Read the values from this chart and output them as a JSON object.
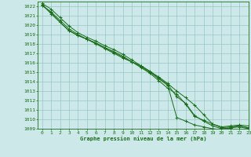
{
  "title": "Graphe pression niveau de la mer (hPa)",
  "bg_color": "#cce8e8",
  "grid_color": "#8dbdbd",
  "line_color": "#1a6e1a",
  "xlim": [
    -0.5,
    23
  ],
  "ylim": [
    1009,
    1022.5
  ],
  "xticks": [
    0,
    1,
    2,
    3,
    4,
    5,
    6,
    7,
    8,
    9,
    10,
    11,
    12,
    13,
    14,
    15,
    16,
    17,
    18,
    19,
    20,
    21,
    22,
    23
  ],
  "yticks": [
    1009,
    1010,
    1011,
    1012,
    1013,
    1014,
    1015,
    1016,
    1017,
    1018,
    1019,
    1020,
    1021,
    1022
  ],
  "series": [
    [
      1022.3,
      1021.7,
      1020.8,
      1019.9,
      1019.2,
      1018.7,
      1018.3,
      1017.8,
      1017.4,
      1016.9,
      1016.3,
      1015.7,
      1015.1,
      1014.5,
      1013.8,
      1013.0,
      1012.3,
      1011.5,
      1010.5,
      1009.5,
      1009.2,
      1009.3,
      1009.4,
      1009.3
    ],
    [
      1022.1,
      1021.4,
      1020.5,
      1019.6,
      1019.0,
      1018.5,
      1018.1,
      1017.6,
      1017.2,
      1016.7,
      1016.1,
      1015.5,
      1014.9,
      1014.1,
      1013.3,
      1012.7,
      1011.6,
      1010.3,
      1009.9,
      1009.5,
      1009.1,
      1009.2,
      1009.3,
      1009.1
    ],
    [
      1022.2,
      1021.2,
      1020.3,
      1019.4,
      1018.9,
      1018.5,
      1018.0,
      1017.5,
      1017.0,
      1016.5,
      1016.1,
      1015.7,
      1015.1,
      1014.4,
      1013.7,
      1012.4,
      1011.7,
      1010.4,
      1009.8,
      1009.3,
      1009.0,
      1009.1,
      1009.2,
      1009.0
    ],
    [
      1022.1,
      1021.3,
      1020.3,
      1019.4,
      1018.9,
      1018.5,
      1018.1,
      1017.6,
      1017.1,
      1016.6,
      1016.1,
      1015.6,
      1015.0,
      1014.3,
      1013.6,
      1010.2,
      1009.8,
      1009.4,
      1009.2,
      1009.0,
      1008.9,
      1009.1,
      1009.3,
      1009.1
    ]
  ]
}
